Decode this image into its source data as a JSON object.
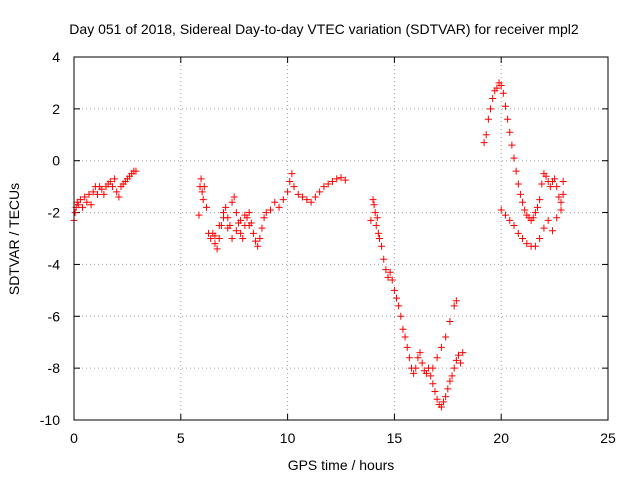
{
  "chart_data": {
    "type": "scatter",
    "title": "Day 051 of 2018, Sidereal Day-to-day VTEC variation (SDTVAR) for receiver mpl2",
    "xlabel": "GPS time / hours",
    "ylabel": "SDTVAR / TECUs",
    "xlim": [
      0,
      25
    ],
    "ylim": [
      -10,
      4
    ],
    "xticks": [
      0,
      5,
      10,
      15,
      20,
      25
    ],
    "yticks": [
      -10,
      -8,
      -6,
      -4,
      -2,
      0,
      2,
      4
    ],
    "xtick_labels": [
      "0",
      "5",
      "10",
      "15",
      "20",
      "25"
    ],
    "ytick_labels": [
      "-10",
      "-8",
      "-6",
      "-4",
      "-2",
      "0",
      "2",
      "4"
    ],
    "grid": true,
    "marker": "plus",
    "color": "#ff0000",
    "series": [
      {
        "x": [
          0.0,
          0.05,
          0.1,
          0.15,
          0.2,
          0.3,
          0.4,
          0.5,
          0.6,
          0.7,
          0.8,
          0.9,
          1.0,
          1.1,
          1.2,
          1.3,
          1.4,
          1.5,
          1.6,
          1.7,
          1.8,
          1.9,
          2.0,
          2.1,
          2.2,
          2.3,
          2.4,
          2.5,
          2.6,
          2.7,
          2.8,
          2.9
        ],
        "y": [
          -2.3,
          -2.0,
          -1.8,
          -1.6,
          -1.7,
          -1.5,
          -1.8,
          -1.4,
          -1.6,
          -1.3,
          -1.7,
          -1.2,
          -1.0,
          -1.3,
          -1.0,
          -1.1,
          -1.3,
          -1.0,
          -0.9,
          -0.8,
          -1.0,
          -0.7,
          -1.2,
          -1.4,
          -1.0,
          -0.9,
          -0.8,
          -0.7,
          -0.6,
          -0.5,
          -0.4,
          -0.4
        ]
      },
      {
        "x": [
          5.85,
          5.9,
          5.95,
          6.0,
          6.05,
          6.1,
          6.2,
          6.3,
          6.4,
          6.5,
          6.6,
          6.7,
          6.8,
          6.9,
          7.0,
          7.1,
          7.2,
          7.3,
          7.4,
          7.5,
          7.6,
          7.7,
          7.8,
          7.9,
          8.0,
          8.1,
          8.2,
          8.3,
          8.4,
          8.5,
          8.6,
          8.7,
          8.8,
          8.9,
          9.0,
          9.2,
          9.4,
          9.6,
          9.8,
          10.0,
          10.1,
          10.2,
          10.3,
          10.5,
          10.7,
          10.9,
          11.1,
          11.3,
          11.5,
          11.7,
          11.9,
          12.1,
          12.3,
          12.5,
          12.7
        ],
        "y": [
          -2.1,
          -1.0,
          -0.7,
          -1.2,
          -1.5,
          -1.0,
          -1.8,
          -2.8,
          -3.0,
          -2.8,
          -3.2,
          -3.4,
          -3.0,
          -2.5,
          -2.0,
          -1.8,
          -2.2,
          -2.5,
          -1.6,
          -1.4,
          -2.0,
          -2.4,
          -2.8,
          -3.0,
          -2.5,
          -2.2,
          -2.0,
          -2.4,
          -2.8,
          -3.1,
          -3.3,
          -3.0,
          -2.6,
          -2.2,
          -2.0,
          -1.9,
          -1.6,
          -1.8,
          -1.5,
          -1.2,
          -0.8,
          -0.5,
          -1.0,
          -1.3,
          -1.4,
          -1.5,
          -1.6,
          -1.4,
          -1.2,
          -1.0,
          -0.9,
          -0.8,
          -0.7,
          -0.65,
          -0.75
        ]
      },
      {
        "x": [
          6.6,
          6.8,
          7.0,
          7.2,
          7.4,
          7.6,
          7.8,
          8.0,
          8.2
        ],
        "y": [
          -2.9,
          -2.5,
          -2.2,
          -2.6,
          -3.0,
          -2.7,
          -2.3,
          -2.1,
          -2.5
        ]
      },
      {
        "x": [
          13.9,
          14.0,
          14.05,
          14.1,
          14.15,
          14.2,
          14.25,
          14.3,
          14.4,
          14.5,
          14.6,
          14.7,
          14.8,
          14.9,
          15.0,
          15.1,
          15.2,
          15.3,
          15.4,
          15.5,
          15.6,
          15.7,
          15.8,
          15.9,
          16.0,
          16.1,
          16.2,
          16.3,
          16.4,
          16.5,
          16.6,
          16.7,
          16.8,
          16.9,
          17.0,
          17.1,
          17.2,
          17.3,
          17.4,
          17.5,
          17.6,
          17.7,
          17.8,
          17.9,
          18.0,
          18.1,
          18.2
        ],
        "y": [
          -2.3,
          -1.5,
          -1.7,
          -2.0,
          -2.5,
          -2.2,
          -2.8,
          -3.0,
          -3.3,
          -3.8,
          -4.2,
          -4.5,
          -4.3,
          -4.6,
          -5.0,
          -5.3,
          -5.6,
          -6.0,
          -6.5,
          -6.8,
          -7.2,
          -7.6,
          -8.0,
          -8.2,
          -8.0,
          -7.6,
          -7.4,
          -7.8,
          -8.1,
          -8.2,
          -8.0,
          -8.3,
          -8.6,
          -8.9,
          -9.2,
          -9.4,
          -9.5,
          -9.3,
          -9.1,
          -8.8,
          -8.5,
          -8.3,
          -8.0,
          -7.7,
          -7.5,
          -7.8,
          -7.4
        ]
      },
      {
        "x": [
          16.8,
          17.0,
          17.2,
          17.4,
          17.6,
          17.8,
          17.9
        ],
        "y": [
          -8.0,
          -7.6,
          -7.2,
          -6.8,
          -6.2,
          -5.6,
          -5.4
        ]
      },
      {
        "x": [
          19.2,
          19.3,
          19.4,
          19.5,
          19.6,
          19.7,
          19.8,
          19.9,
          20.0,
          20.1,
          20.2,
          20.3,
          20.4,
          20.5,
          20.6,
          20.7,
          20.8,
          20.9,
          21.0,
          21.1,
          21.2,
          21.3,
          21.4,
          21.5,
          21.6,
          21.7,
          21.8,
          21.9,
          22.0,
          22.1,
          22.2,
          22.3,
          22.4,
          22.5,
          22.6,
          22.7,
          22.8,
          22.9
        ],
        "y": [
          0.7,
          1.0,
          1.6,
          2.0,
          2.4,
          2.7,
          2.8,
          3.0,
          2.9,
          2.6,
          2.1,
          1.6,
          1.1,
          0.6,
          0.1,
          -0.4,
          -0.9,
          -1.3,
          -1.6,
          -1.9,
          -2.1,
          -2.2,
          -2.3,
          -2.2,
          -2.0,
          -1.8,
          -1.5,
          -0.9,
          -0.5,
          -0.6,
          -0.8,
          -1.0,
          -0.8,
          -0.7,
          -1.0,
          -1.4,
          -1.6,
          -1.3
        ]
      },
      {
        "x": [
          20.0,
          20.2,
          20.4,
          20.6,
          20.8,
          21.0,
          21.2,
          21.4,
          21.6,
          21.8,
          22.0,
          22.2,
          22.4,
          22.6,
          22.8,
          22.9
        ],
        "y": [
          -1.9,
          -2.1,
          -2.3,
          -2.5,
          -2.8,
          -3.0,
          -3.2,
          -3.3,
          -3.3,
          -3.0,
          -2.6,
          -2.3,
          -2.7,
          -2.2,
          -1.9,
          -0.8
        ]
      }
    ]
  }
}
